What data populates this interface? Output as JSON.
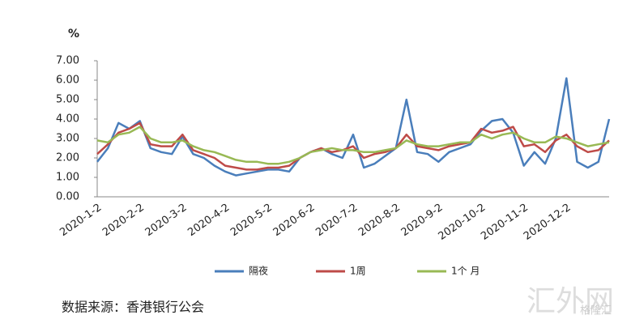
{
  "chart_data": {
    "type": "line",
    "y_unit": "%",
    "categories": [
      "2020-1-2",
      null,
      null,
      null,
      "2020-2-2",
      null,
      null,
      null,
      "2020-3-2",
      null,
      null,
      null,
      "2020-4-2",
      null,
      null,
      null,
      "2020-5-2",
      null,
      null,
      null,
      "2020-6-2",
      null,
      null,
      null,
      "2020-7-2",
      null,
      null,
      null,
      "2020-8-2",
      null,
      null,
      null,
      "2020-9-2",
      null,
      null,
      null,
      "2020-10-2",
      null,
      null,
      null,
      "2020-11-2",
      null,
      null,
      null,
      "2020-12-2",
      null,
      null,
      null,
      null
    ],
    "series": [
      {
        "name": "隔夜",
        "color": "#4a7ebb",
        "values": [
          1.8,
          2.5,
          3.8,
          3.5,
          3.9,
          2.5,
          2.3,
          2.2,
          3.1,
          2.2,
          2.0,
          1.6,
          1.3,
          1.1,
          1.2,
          1.3,
          1.4,
          1.4,
          1.3,
          2.0,
          2.3,
          2.5,
          2.2,
          2.0,
          3.2,
          1.5,
          1.7,
          2.1,
          2.5,
          5.0,
          2.3,
          2.2,
          1.8,
          2.3,
          2.5,
          2.7,
          3.4,
          3.9,
          4.0,
          3.3,
          1.6,
          2.3,
          1.7,
          3.0,
          6.1,
          1.8,
          1.5,
          1.8,
          4.0
        ]
      },
      {
        "name": "1周",
        "color": "#be4b48",
        "values": [
          2.2,
          2.7,
          3.3,
          3.5,
          3.8,
          2.7,
          2.6,
          2.6,
          3.2,
          2.4,
          2.2,
          2.0,
          1.6,
          1.5,
          1.4,
          1.4,
          1.5,
          1.5,
          1.6,
          2.0,
          2.3,
          2.5,
          2.3,
          2.4,
          2.6,
          2.0,
          2.2,
          2.3,
          2.5,
          3.2,
          2.6,
          2.5,
          2.4,
          2.6,
          2.7,
          2.8,
          3.5,
          3.3,
          3.4,
          3.6,
          2.6,
          2.7,
          2.3,
          2.9,
          3.2,
          2.6,
          2.3,
          2.4,
          2.9
        ]
      },
      {
        "name": "1个 月",
        "color": "#98b954",
        "values": [
          2.9,
          2.8,
          3.2,
          3.3,
          3.6,
          3.0,
          2.8,
          2.8,
          2.9,
          2.6,
          2.4,
          2.3,
          2.1,
          1.9,
          1.8,
          1.8,
          1.7,
          1.7,
          1.8,
          2.0,
          2.3,
          2.4,
          2.5,
          2.4,
          2.4,
          2.3,
          2.3,
          2.4,
          2.5,
          2.9,
          2.7,
          2.6,
          2.6,
          2.7,
          2.8,
          2.8,
          3.2,
          3.0,
          3.2,
          3.3,
          3.0,
          2.8,
          2.8,
          3.1,
          3.0,
          2.8,
          2.6,
          2.7,
          2.8
        ]
      }
    ],
    "ylim": [
      0,
      7
    ],
    "yticks": [
      {
        "value": 0,
        "label": "0.00"
      },
      {
        "value": 1,
        "label": "1.00"
      },
      {
        "value": 2,
        "label": "2.00"
      },
      {
        "value": 3,
        "label": "3.00"
      },
      {
        "value": 4,
        "label": "4.00"
      },
      {
        "value": 5,
        "label": "5.00"
      },
      {
        "value": 6,
        "label": "6.00"
      },
      {
        "value": 7,
        "label": "7.00"
      }
    ],
    "grid": false,
    "legend": "bottom",
    "source": "数据来源：香港银行公会",
    "watermark": "汇外网",
    "watermark2": "格隆汇"
  }
}
